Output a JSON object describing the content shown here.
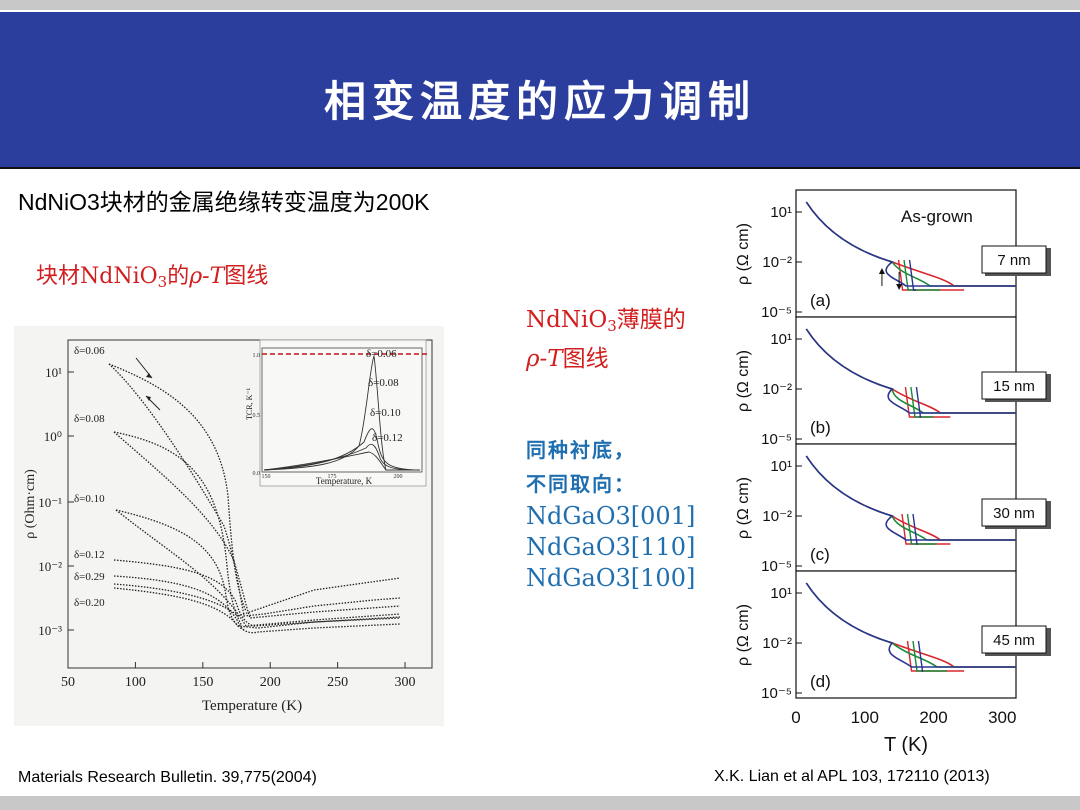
{
  "slide": {
    "title": "相变温度的应力调制",
    "subtitle": "NdNiO3块材的金属绝缘转变温度为200K",
    "bulk_label": {
      "pre": "块材NdNiO",
      "sub": "3",
      "mid": "的",
      "rho_t": "ρ-T",
      "post": "图线"
    },
    "film_label": {
      "pre": "NdNiO",
      "sub": "3",
      "post": "薄膜的",
      "rho_t": "ρ-T",
      "post2": "图线"
    },
    "substrate": {
      "line1": "同种衬底，",
      "line2": "不同取向：",
      "items": [
        "NdGaO3[001]",
        "NdGaO3[110]",
        "NdGaO3[100]"
      ]
    },
    "ref_left": "Materials Research Bulletin. 39,775(2004)",
    "ref_right": "X.K. Lian et al  APL 103, 172110 (2013)"
  },
  "colors": {
    "title_bg": "#2b3e9e",
    "red": "#d21e1e",
    "blue": "#1f6fb0"
  },
  "chart_data": [
    {
      "type": "line",
      "xlabel": "Temperature (K)",
      "ylabel": "ρ (Ohm·cm)",
      "xticks": [
        "50",
        "100",
        "150",
        "200",
        "250",
        "300"
      ],
      "yticks": [
        "10¹",
        "10⁰",
        "10⁻¹",
        "10⁻²",
        "10⁻³"
      ],
      "xlim": [
        50,
        310
      ],
      "ylog": true,
      "series_labels": [
        "δ=0.06",
        "δ=0.08",
        "δ=0.10",
        "δ=0.12",
        "δ=0.29",
        "δ=0.20"
      ],
      "inset": {
        "xlabel": "Temperature, K",
        "ylabel": "TCR, K⁻¹",
        "xticks": [
          "150",
          "175",
          "200"
        ],
        "yticks": [
          "1.0",
          "0.5",
          "0.0"
        ],
        "labels": [
          "δ=0.06",
          "δ=0.08",
          "δ=0.10",
          "δ=0.12"
        ]
      }
    },
    {
      "type": "line",
      "xlabel": "T (K)",
      "ylabel": "ρ (Ω cm)",
      "xticks": [
        "0",
        "100",
        "200",
        "300"
      ],
      "yticks": [
        "10¹",
        "10⁻²",
        "10⁻⁵"
      ],
      "ylog": true,
      "series_colors": [
        "#d8262c",
        "#1b8a3a",
        "#2b3590"
      ],
      "panels": [
        {
          "tag": "(a)",
          "thickness": "7 nm",
          "note": "As-grown"
        },
        {
          "tag": "(b)",
          "thickness": "15 nm"
        },
        {
          "tag": "(c)",
          "thickness": "30 nm"
        },
        {
          "tag": "(d)",
          "thickness": "45 nm"
        }
      ]
    }
  ]
}
